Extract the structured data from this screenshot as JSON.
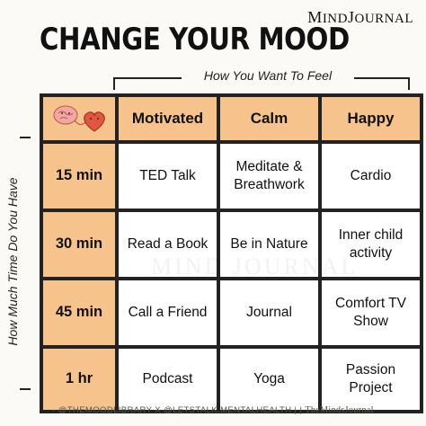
{
  "brand": {
    "name_big_1": "M",
    "name_small_1": "IND",
    "name_big_2": "J",
    "name_small_2": "OURNAL"
  },
  "title": "CHANGE YOUR MOOD",
  "top_label": "How You Want To Feel",
  "side_label": "How Much Time Do You Have",
  "columns": [
    "Motivated",
    "Calm",
    "Happy"
  ],
  "rows": [
    {
      "time": "15 min",
      "cells": [
        "TED Talk",
        "Meditate & Breathwork",
        "Cardio"
      ]
    },
    {
      "time": "30 min",
      "cells": [
        "Read a Book",
        "Be in Nature",
        "Inner child activity"
      ]
    },
    {
      "time": "45 min",
      "cells": [
        "Call a Friend",
        "Journal",
        "Comfort TV Show"
      ]
    },
    {
      "time": "1 hr",
      "cells": [
        "Podcast",
        "Yoga",
        "Passion Project"
      ]
    }
  ],
  "watermark": "MIND JOURNAL",
  "footer": {
    "credits": "- @THEMOODLIBRARY X @LETSTALK.MENTALHEALTH  |  |",
    "site": "TheMindsJournal"
  },
  "colors": {
    "header_bg": "#f6c38c",
    "border": "#222222",
    "heart": "#e2563f"
  }
}
